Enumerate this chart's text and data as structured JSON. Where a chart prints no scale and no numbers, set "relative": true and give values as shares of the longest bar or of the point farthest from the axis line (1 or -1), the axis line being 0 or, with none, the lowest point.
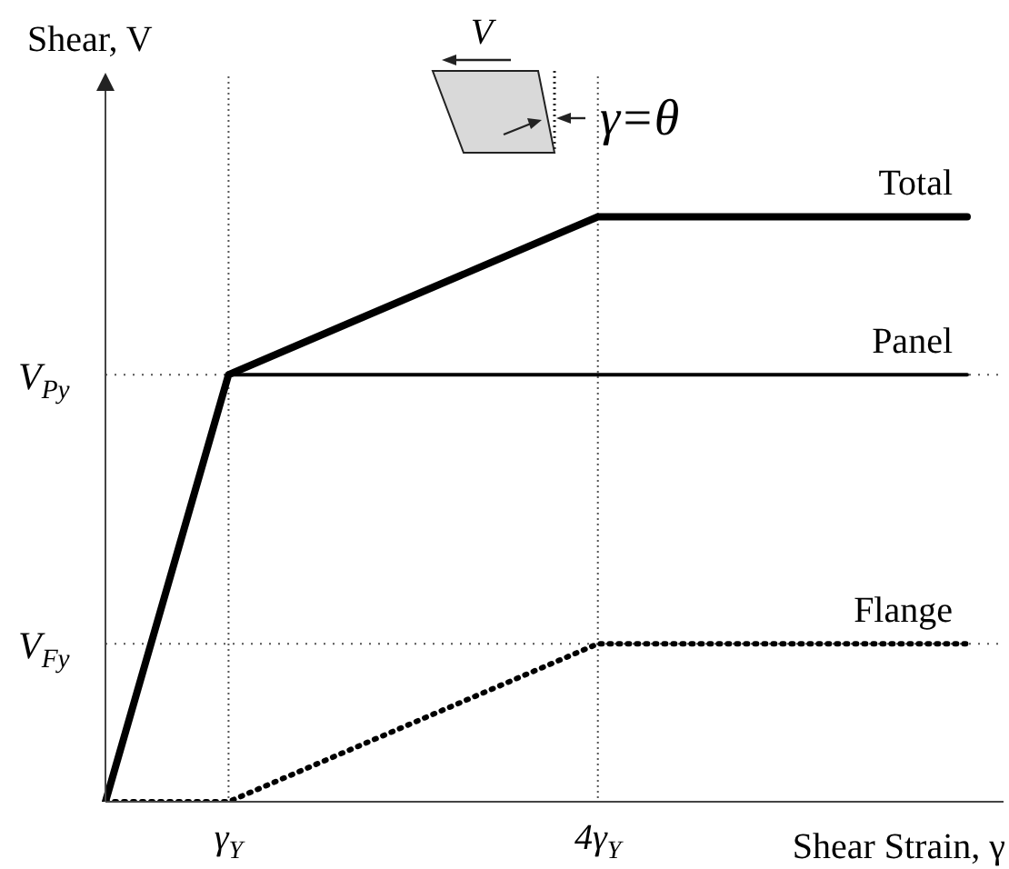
{
  "chart_data": {
    "type": "line",
    "relative": true,
    "ylabel": "Shear, V",
    "xlabel": "Shear Strain, γ",
    "annotations": [
      "V",
      "γ=θ"
    ],
    "categories": [
      null,
      "γ$_{Y}$",
      null,
      null,
      "4γ$_{Y}$",
      null,
      null,
      null
    ],
    "grid": "x",
    "legend": false,
    "marker": "none",
    "ref_lines": [
      {
        "axis": "y",
        "value": 0.73,
        "label": "V$_{Py}$",
        "color": "#555555",
        "line_style": "dotted"
      },
      {
        "axis": "y",
        "value": 0.27,
        "label": "V$_{Fy}$",
        "color": "#555555",
        "line_style": "dotted"
      }
    ],
    "series": [
      {
        "name": "Total",
        "color": "#000000",
        "values": [
          0,
          0.73,
          0.82,
          0.91,
          1,
          1,
          1,
          1
        ],
        "line_style": "solid"
      },
      {
        "name": "Panel",
        "color": "#000000",
        "values": [
          0,
          0.73,
          0.73,
          0.73,
          0.73,
          0.73,
          0.73,
          0.73
        ],
        "line_style": "solid"
      },
      {
        "name": "Flange",
        "color": "#000000",
        "values": [
          0,
          0,
          0.09,
          0.18,
          0.27,
          0.27,
          0.27,
          0.27
        ],
        "line_style": "dotted"
      }
    ]
  }
}
